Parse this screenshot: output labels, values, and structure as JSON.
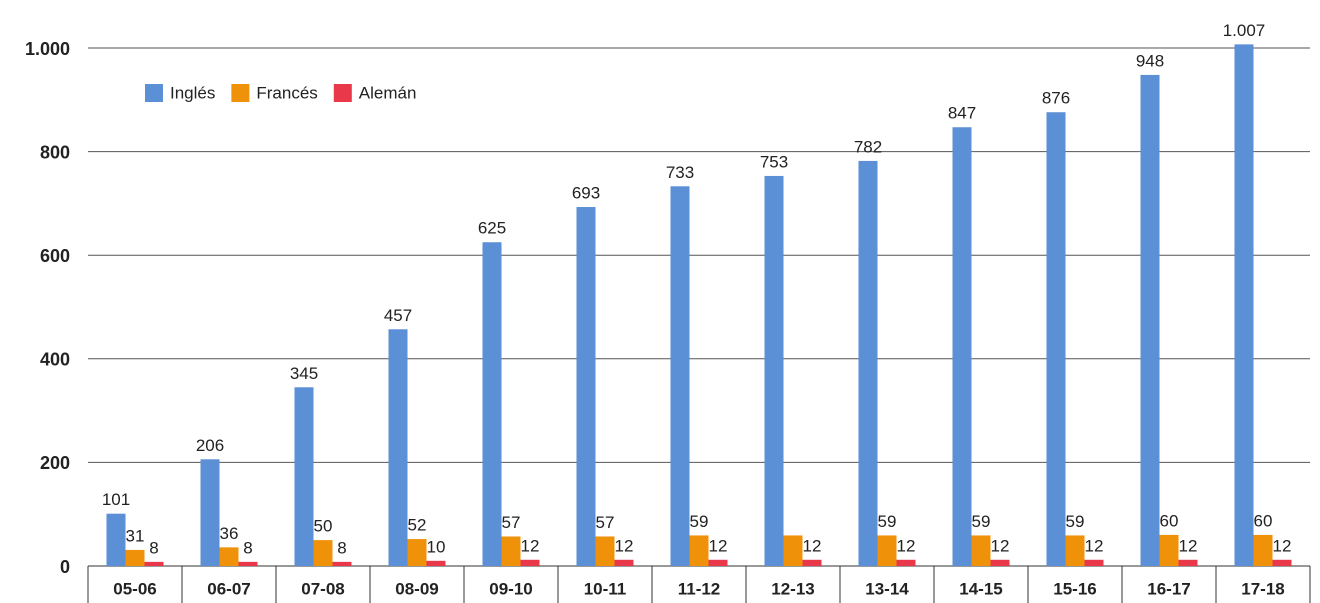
{
  "chart_data": {
    "type": "bar",
    "categories": [
      "05-06",
      "06-07",
      "07-08",
      "08-09",
      "09-10",
      "10-11",
      "11-12",
      "12-13",
      "13-14",
      "14-15",
      "15-16",
      "16-17",
      "17-18"
    ],
    "series": [
      {
        "name": "Inglés",
        "color": "#5b8fd6",
        "values": [
          101,
          206,
          345,
          457,
          625,
          693,
          733,
          753,
          782,
          847,
          876,
          948,
          1007
        ],
        "value_labels": [
          "101",
          "206",
          "345",
          "457",
          "625",
          "693",
          "733",
          "753",
          "782",
          "847",
          "876",
          "948",
          "1.007"
        ]
      },
      {
        "name": "Francés",
        "color": "#f0910a",
        "values": [
          31,
          36,
          50,
          52,
          57,
          57,
          59,
          59,
          59,
          59,
          59,
          60,
          60
        ],
        "value_labels": [
          "31",
          "36",
          "50",
          "52",
          "57",
          "57",
          "59",
          null,
          "59",
          "59",
          "59",
          "60",
          "60"
        ]
      },
      {
        "name": "Alemán",
        "color": "#e8384a",
        "values": [
          8,
          8,
          8,
          10,
          12,
          12,
          12,
          12,
          12,
          12,
          12,
          12,
          12
        ],
        "value_labels": [
          "8",
          "8",
          "8",
          "10",
          "12",
          "12",
          "12",
          "12",
          "12",
          "12",
          "12",
          "12",
          "12"
        ]
      }
    ],
    "ylim": [
      0,
      1000
    ],
    "yticks": [
      0,
      200,
      400,
      600,
      800,
      {
        "value": 1000,
        "label": "1.000"
      }
    ],
    "grid": true,
    "legend": "top-left"
  }
}
